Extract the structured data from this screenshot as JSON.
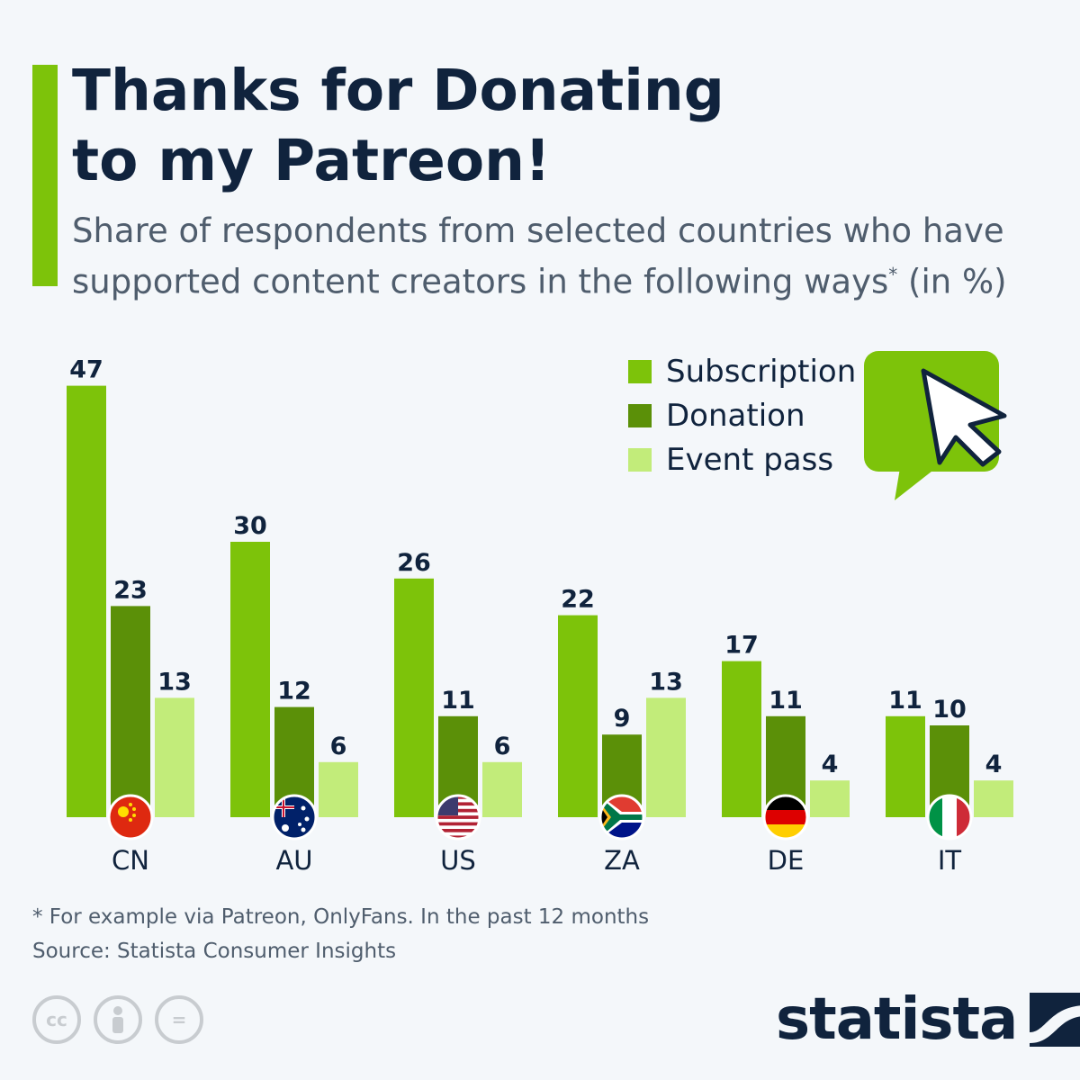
{
  "header": {
    "title_line1": "Thanks for Donating",
    "title_line2": "to my Patreon!",
    "subtitle_main": "Share of respondents from selected countries who have supported content creators in the following ways",
    "subtitle_star": "*",
    "subtitle_tail": " (in %)"
  },
  "colors": {
    "accent": "#7dc30a",
    "subscription": "#7dc30a",
    "donation": "#5b9008",
    "event_pass": "#c2ec7a",
    "text_dark": "#10233d"
  },
  "legend": {
    "items": [
      {
        "label": "Subscription",
        "color": "#7dc30a"
      },
      {
        "label": "Donation",
        "color": "#5b9008"
      },
      {
        "label": "Event pass",
        "color": "#c2ec7a"
      }
    ]
  },
  "chart_data": {
    "type": "bar",
    "categories": [
      "CN",
      "AU",
      "US",
      "ZA",
      "DE",
      "IT"
    ],
    "series": [
      {
        "name": "Subscription",
        "values": [
          47,
          30,
          26,
          22,
          17,
          11
        ]
      },
      {
        "name": "Donation",
        "values": [
          23,
          12,
          11,
          9,
          11,
          10
        ]
      },
      {
        "name": "Event pass",
        "values": [
          13,
          6,
          6,
          13,
          4,
          4
        ]
      }
    ],
    "ylim": [
      0,
      47
    ],
    "grid": false,
    "legend_position": "top-right",
    "flags": [
      "china-flag-icon",
      "australia-flag-icon",
      "usa-flag-icon",
      "south-africa-flag-icon",
      "germany-flag-icon",
      "italy-flag-icon"
    ]
  },
  "footer": {
    "footnote": "* For example via Patreon, OnlyFans. In the past 12 months",
    "source": "Source: Statista Consumer Insights",
    "cc_label": "cc",
    "equals_label": "=",
    "brand": "statista"
  }
}
